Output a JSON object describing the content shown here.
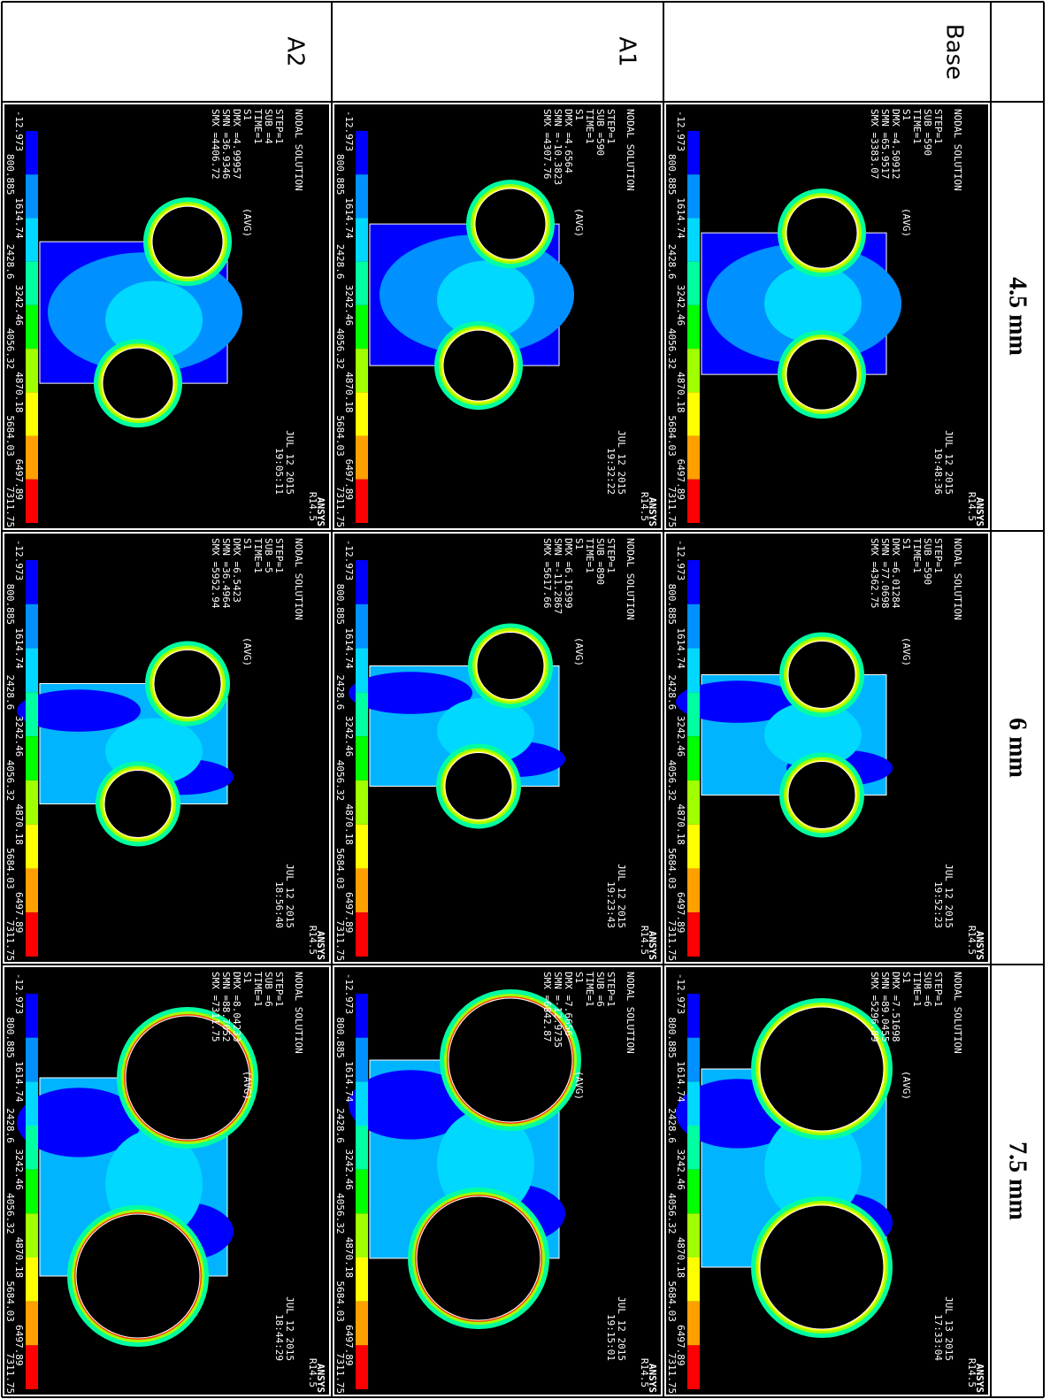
{
  "header": {
    "columns": [
      "4.5 mm",
      "6 mm",
      "7.5 mm"
    ],
    "rows": [
      "Base",
      "A1",
      "A2"
    ]
  },
  "legend": {
    "values": [
      "-12.973",
      "800.885",
      "1614.74",
      "2428.6",
      "3242.46",
      "4056.32",
      "4870.18",
      "5684.03",
      "6497.89",
      "7311.75"
    ],
    "colors": [
      "#0000ff",
      "#0090ff",
      "#00d8ff",
      "#00ffa0",
      "#00ff00",
      "#a0ff00",
      "#ffff00",
      "#ffa000",
      "#ff0000"
    ]
  },
  "panels": [
    [
      {
        "title": "NODAL SOLUTION",
        "step": "STEP=1",
        "sub": "SUB =590",
        "time": "TIME=1",
        "result": "S1",
        "avg": "(AVG)",
        "dmx": "DMX =4.50912",
        "smn": "SMN =65.9517",
        "smx": "SMX =3383.07",
        "date": "JUL 12 2015",
        "clock": "19:48:36",
        "logo": "ANSYS",
        "version": "R14.5"
      },
      {
        "title": "NODAL SOLUTION",
        "step": "STEP=1",
        "sub": "SUB =590",
        "time": "TIME=1",
        "result": "S1",
        "avg": "(AVG)",
        "dmx": "DMX =6.01284",
        "smn": "SMN =77.0698",
        "smx": "SMX =4362.75",
        "date": "JUL 12 2015",
        "clock": "19:52:23",
        "logo": "ANSYS",
        "version": "R14.5"
      },
      {
        "title": "NODAL SOLUTION",
        "step": "STEP=1",
        "sub": "SUB =6",
        "time": "TIME=1",
        "result": "S1",
        "avg": "(AVG)",
        "dmx": "DMX =7.51698",
        "smn": "SMN =89.0455",
        "smx": "SMX =5296.89",
        "date": "JUL 13 2015",
        "clock": "17:33:04",
        "logo": "ANSYS",
        "version": "R14.5"
      }
    ],
    [
      {
        "title": "NODAL SOLUTION",
        "step": "STEP=1",
        "sub": "SUB =590",
        "time": "TIME=1",
        "result": "S1",
        "avg": "(AVG)",
        "dmx": "DMX =4.6564",
        "smn": "SMN =-10.3823",
        "smx": "SMX =4307.76",
        "date": "JUL 12 2015",
        "clock": "19:32:22",
        "logo": "ANSYS",
        "version": "R14.5"
      },
      {
        "title": "NODAL SOLUTION",
        "step": "STEP=1",
        "sub": "SUB =890",
        "time": "TIME=1",
        "result": "S1",
        "avg": "(AVG)",
        "dmx": "DMX =6.16399",
        "smn": "SMN =-11.2867",
        "smx": "SMX =5617.66",
        "date": "JUL 12 2015",
        "clock": "19:23:43",
        "logo": "ANSYS",
        "version": "R14.5"
      },
      {
        "title": "NODAL SOLUTION",
        "step": "STEP=1",
        "sub": "SUB =6",
        "time": "TIME=1",
        "result": "S1",
        "avg": "(AVG)",
        "dmx": "DMX =7.6656",
        "smn": "SMN =-12.9735",
        "smx": "SMX =6842.87",
        "date": "JUL 12 2015",
        "clock": "19:15:01",
        "logo": "ANSYS",
        "version": "R14.5"
      }
    ],
    [
      {
        "title": "NODAL SOLUTION",
        "step": "STEP=1",
        "sub": "SUB =4",
        "time": "TIME=1",
        "result": "S1",
        "avg": "(AVG)",
        "dmx": "DMX =4.99957",
        "smn": "SMN =36.9346",
        "smx": "SMX =4406.72",
        "date": "JUL 12 2015",
        "clock": "19:05:11",
        "logo": "ANSYS",
        "version": "R14.5"
      },
      {
        "title": "NODAL SOLUTION",
        "step": "STEP=1",
        "sub": "SUB =5",
        "time": "TIME=1",
        "result": "S1",
        "avg": "(AVG)",
        "dmx": "DMX =6.5423",
        "smn": "SMN =36.4964",
        "smx": "SMX =5952.94",
        "date": "JUL 12 2015",
        "clock": "18:56:40",
        "logo": "ANSYS",
        "version": "R14.5"
      },
      {
        "title": "NODAL SOLUTION",
        "step": "STEP=1",
        "sub": "SUB =6",
        "time": "TIME=1",
        "result": "S1",
        "avg": "(AVG)",
        "dmx": "DMX =8.04233",
        "smn": "SMN =88.7052",
        "smx": "SMX =7311.75",
        "date": "JUL 12 2015",
        "clock": "18:44:29",
        "logo": "ANSYS",
        "version": "R14.5"
      }
    ]
  ]
}
